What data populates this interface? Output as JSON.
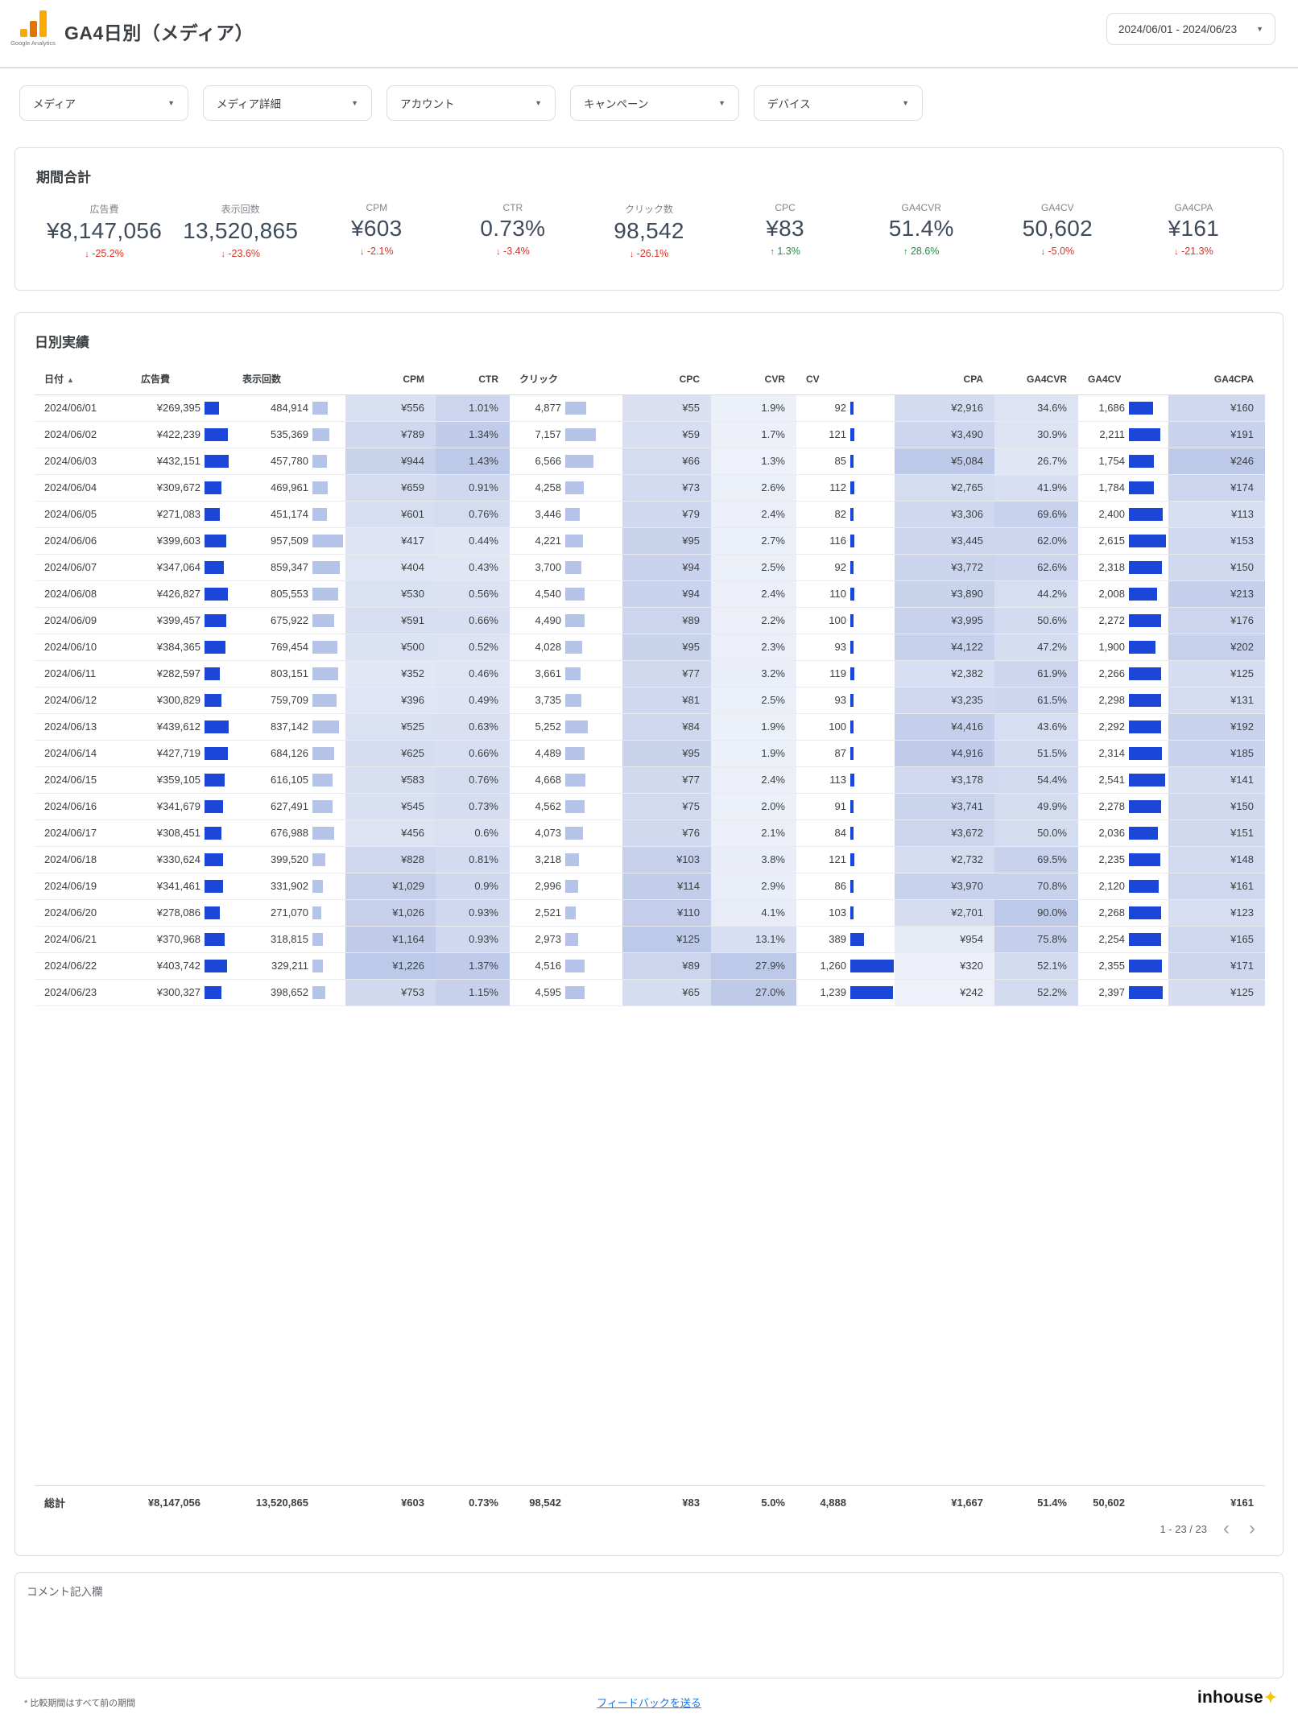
{
  "header": {
    "title": "GA4日別（メディア）",
    "logo_caption": "Google Analytics",
    "date_range": "2024/06/01 - 2024/06/23"
  },
  "filters": [
    {
      "label": "メディア"
    },
    {
      "label": "メディア詳細"
    },
    {
      "label": "アカウント"
    },
    {
      "label": "キャンペーン"
    },
    {
      "label": "デバイス"
    }
  ],
  "summary": {
    "title": "期間合計",
    "kpis": [
      {
        "label": "広告費",
        "value": "¥8,147,056",
        "delta": "-25.2%",
        "direction": "down"
      },
      {
        "label": "表示回数",
        "value": "13,520,865",
        "delta": "-23.6%",
        "direction": "down"
      },
      {
        "label": "CPM",
        "value": "¥603",
        "delta": "-2.1%",
        "direction": "down"
      },
      {
        "label": "CTR",
        "value": "0.73%",
        "delta": "-3.4%",
        "direction": "down"
      },
      {
        "label": "クリック数",
        "value": "98,542",
        "delta": "-26.1%",
        "direction": "down"
      },
      {
        "label": "CPC",
        "value": "¥83",
        "delta": "1.3%",
        "direction": "up"
      },
      {
        "label": "GA4CVR",
        "value": "51.4%",
        "delta": "28.6%",
        "direction": "up"
      },
      {
        "label": "GA4CV",
        "value": "50,602",
        "delta": "-5.0%",
        "direction": "down"
      },
      {
        "label": "GA4CPA",
        "value": "¥161",
        "delta": "-21.3%",
        "direction": "down"
      }
    ]
  },
  "daily": {
    "title": "日別実績",
    "columns": [
      "日付",
      "広告費",
      "表示回数",
      "CPM",
      "CTR",
      "クリック",
      "CPC",
      "CVR",
      "CV",
      "CPA",
      "GA4CVR",
      "GA4CV",
      "GA4CPA"
    ],
    "rows": [
      [
        "2024/06/01",
        "¥269,395",
        "484,914",
        "¥556",
        "1.01%",
        "4,877",
        "¥55",
        "1.9%",
        "92",
        "¥2,916",
        "34.6%",
        "1,686",
        "¥160"
      ],
      [
        "2024/06/02",
        "¥422,239",
        "535,369",
        "¥789",
        "1.34%",
        "7,157",
        "¥59",
        "1.7%",
        "121",
        "¥3,490",
        "30.9%",
        "2,211",
        "¥191"
      ],
      [
        "2024/06/03",
        "¥432,151",
        "457,780",
        "¥944",
        "1.43%",
        "6,566",
        "¥66",
        "1.3%",
        "85",
        "¥5,084",
        "26.7%",
        "1,754",
        "¥246"
      ],
      [
        "2024/06/04",
        "¥309,672",
        "469,961",
        "¥659",
        "0.91%",
        "4,258",
        "¥73",
        "2.6%",
        "112",
        "¥2,765",
        "41.9%",
        "1,784",
        "¥174"
      ],
      [
        "2024/06/05",
        "¥271,083",
        "451,174",
        "¥601",
        "0.76%",
        "3,446",
        "¥79",
        "2.4%",
        "82",
        "¥3,306",
        "69.6%",
        "2,400",
        "¥113"
      ],
      [
        "2024/06/06",
        "¥399,603",
        "957,509",
        "¥417",
        "0.44%",
        "4,221",
        "¥95",
        "2.7%",
        "116",
        "¥3,445",
        "62.0%",
        "2,615",
        "¥153"
      ],
      [
        "2024/06/07",
        "¥347,064",
        "859,347",
        "¥404",
        "0.43%",
        "3,700",
        "¥94",
        "2.5%",
        "92",
        "¥3,772",
        "62.6%",
        "2,318",
        "¥150"
      ],
      [
        "2024/06/08",
        "¥426,827",
        "805,553",
        "¥530",
        "0.56%",
        "4,540",
        "¥94",
        "2.4%",
        "110",
        "¥3,890",
        "44.2%",
        "2,008",
        "¥213"
      ],
      [
        "2024/06/09",
        "¥399,457",
        "675,922",
        "¥591",
        "0.66%",
        "4,490",
        "¥89",
        "2.2%",
        "100",
        "¥3,995",
        "50.6%",
        "2,272",
        "¥176"
      ],
      [
        "2024/06/10",
        "¥384,365",
        "769,454",
        "¥500",
        "0.52%",
        "4,028",
        "¥95",
        "2.3%",
        "93",
        "¥4,122",
        "47.2%",
        "1,900",
        "¥202"
      ],
      [
        "2024/06/11",
        "¥282,597",
        "803,151",
        "¥352",
        "0.46%",
        "3,661",
        "¥77",
        "3.2%",
        "119",
        "¥2,382",
        "61.9%",
        "2,266",
        "¥125"
      ],
      [
        "2024/06/12",
        "¥300,829",
        "759,709",
        "¥396",
        "0.49%",
        "3,735",
        "¥81",
        "2.5%",
        "93",
        "¥3,235",
        "61.5%",
        "2,298",
        "¥131"
      ],
      [
        "2024/06/13",
        "¥439,612",
        "837,142",
        "¥525",
        "0.63%",
        "5,252",
        "¥84",
        "1.9%",
        "100",
        "¥4,416",
        "43.6%",
        "2,292",
        "¥192"
      ],
      [
        "2024/06/14",
        "¥427,719",
        "684,126",
        "¥625",
        "0.66%",
        "4,489",
        "¥95",
        "1.9%",
        "87",
        "¥4,916",
        "51.5%",
        "2,314",
        "¥185"
      ],
      [
        "2024/06/15",
        "¥359,105",
        "616,105",
        "¥583",
        "0.76%",
        "4,668",
        "¥77",
        "2.4%",
        "113",
        "¥3,178",
        "54.4%",
        "2,541",
        "¥141"
      ],
      [
        "2024/06/16",
        "¥341,679",
        "627,491",
        "¥545",
        "0.73%",
        "4,562",
        "¥75",
        "2.0%",
        "91",
        "¥3,741",
        "49.9%",
        "2,278",
        "¥150"
      ],
      [
        "2024/06/17",
        "¥308,451",
        "676,988",
        "¥456",
        "0.6%",
        "4,073",
        "¥76",
        "2.1%",
        "84",
        "¥3,672",
        "50.0%",
        "2,036",
        "¥151"
      ],
      [
        "2024/06/18",
        "¥330,624",
        "399,520",
        "¥828",
        "0.81%",
        "3,218",
        "¥103",
        "3.8%",
        "121",
        "¥2,732",
        "69.5%",
        "2,235",
        "¥148"
      ],
      [
        "2024/06/19",
        "¥341,461",
        "331,902",
        "¥1,029",
        "0.9%",
        "2,996",
        "¥114",
        "2.9%",
        "86",
        "¥3,970",
        "70.8%",
        "2,120",
        "¥161"
      ],
      [
        "2024/06/20",
        "¥278,086",
        "271,070",
        "¥1,026",
        "0.93%",
        "2,521",
        "¥110",
        "4.1%",
        "103",
        "¥2,701",
        "90.0%",
        "2,268",
        "¥123"
      ],
      [
        "2024/06/21",
        "¥370,968",
        "318,815",
        "¥1,164",
        "0.93%",
        "2,973",
        "¥125",
        "13.1%",
        "389",
        "¥954",
        "75.8%",
        "2,254",
        "¥165"
      ],
      [
        "2024/06/22",
        "¥403,742",
        "329,211",
        "¥1,226",
        "1.37%",
        "4,516",
        "¥89",
        "27.9%",
        "1,260",
        "¥320",
        "52.1%",
        "2,355",
        "¥171"
      ],
      [
        "2024/06/23",
        "¥300,327",
        "398,652",
        "¥753",
        "1.15%",
        "4,595",
        "¥65",
        "27.0%",
        "1,239",
        "¥242",
        "52.2%",
        "2,397",
        "¥125"
      ]
    ],
    "total": [
      "総計",
      "¥8,147,056",
      "13,520,865",
      "¥603",
      "0.73%",
      "98,542",
      "¥83",
      "5.0%",
      "4,888",
      "¥1,667",
      "51.4%",
      "50,602",
      "¥161"
    ],
    "pagination": {
      "text": "1 - 23 / 23",
      "prev": "‹",
      "next": "›"
    }
  },
  "comment": {
    "label": "コメント記入欄"
  },
  "footer": {
    "note": "* 比較期間はすべて前の期間",
    "feedback_label": "フィードバックを送る",
    "brand": "inhouse",
    "brand_mark": "✦"
  },
  "colors": {
    "bar_dark": "#1c46d8",
    "bar_light": "#b6c3e8",
    "shade_rgb": "154,172,220",
    "positive": "#1e8e3e",
    "negative": "#d93025",
    "link": "#1a73e8",
    "brand_yellow": "#f7c600"
  }
}
